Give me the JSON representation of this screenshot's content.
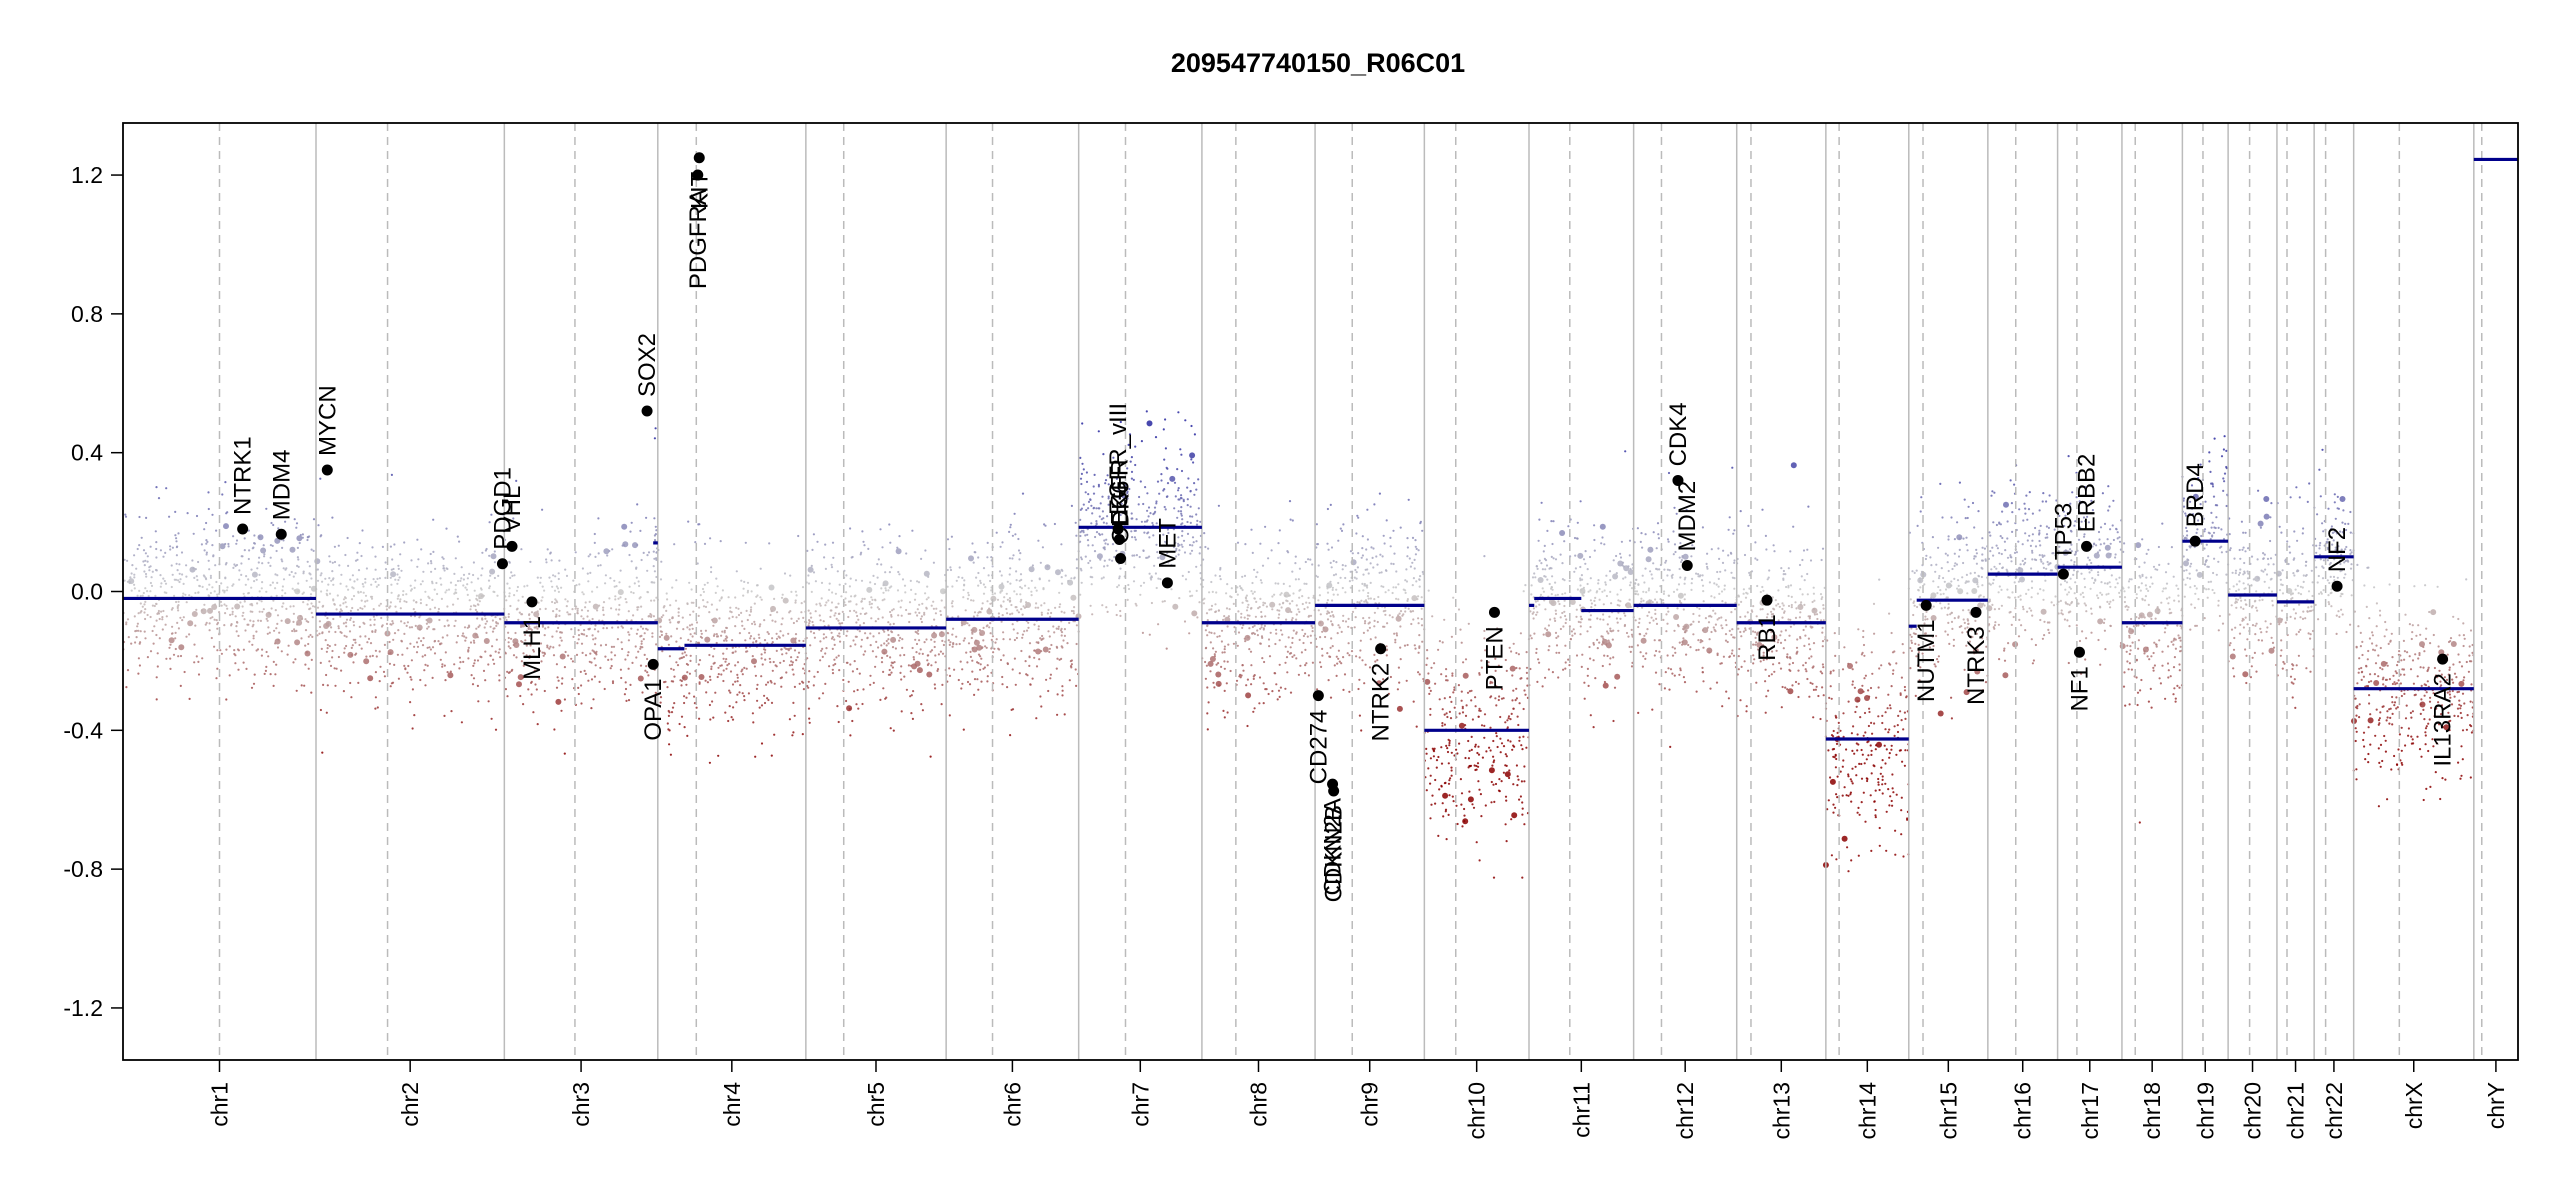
{
  "chart_data": {
    "type": "scatter",
    "title": "209547740150_R06C01",
    "ylim": [
      -1.35,
      1.35
    ],
    "y_ticks": [
      -1.2,
      -0.8,
      -0.4,
      0.0,
      0.4,
      0.8,
      1.2
    ],
    "y_tick_labels": [
      "-1.2",
      "-0.8",
      "-0.4",
      "0.0",
      "0.4",
      "0.8",
      "1.2"
    ],
    "grid": false,
    "chromosomes": [
      {
        "name": "chr1",
        "size": 249,
        "centromere": 0.5
      },
      {
        "name": "chr2",
        "size": 243,
        "centromere": 0.38
      },
      {
        "name": "chr3",
        "size": 198,
        "centromere": 0.46
      },
      {
        "name": "chr4",
        "size": 191,
        "centromere": 0.26
      },
      {
        "name": "chr5",
        "size": 181,
        "centromere": 0.27
      },
      {
        "name": "chr6",
        "size": 171,
        "centromere": 0.35
      },
      {
        "name": "chr7",
        "size": 159,
        "centromere": 0.38
      },
      {
        "name": "chr8",
        "size": 146,
        "centromere": 0.3
      },
      {
        "name": "chr9",
        "size": 141,
        "centromere": 0.34
      },
      {
        "name": "chr10",
        "size": 135,
        "centromere": 0.3
      },
      {
        "name": "chr11",
        "size": 135,
        "centromere": 0.39
      },
      {
        "name": "chr12",
        "size": 133,
        "centromere": 0.27
      },
      {
        "name": "chr13",
        "size": 115,
        "centromere": 0.16
      },
      {
        "name": "chr14",
        "size": 107,
        "centromere": 0.16
      },
      {
        "name": "chr15",
        "size": 102,
        "centromere": 0.18
      },
      {
        "name": "chr16",
        "size": 90,
        "centromere": 0.4
      },
      {
        "name": "chr17",
        "size": 83,
        "centromere": 0.3
      },
      {
        "name": "chr18",
        "size": 78,
        "centromere": 0.22
      },
      {
        "name": "chr19",
        "size": 59,
        "centromere": 0.45
      },
      {
        "name": "chr20",
        "size": 63,
        "centromere": 0.44
      },
      {
        "name": "chr21",
        "size": 48,
        "centromere": 0.27
      },
      {
        "name": "chr22",
        "size": 51,
        "centromere": 0.29
      },
      {
        "name": "chrX",
        "size": 155,
        "centromere": 0.38
      },
      {
        "name": "chrY",
        "size": 57,
        "centromere": 0.18
      }
    ],
    "segments": [
      {
        "chr": "chr1",
        "start": 0.0,
        "end": 1.0,
        "value": -0.02
      },
      {
        "chr": "chr2",
        "start": 0.0,
        "end": 1.0,
        "value": -0.065
      },
      {
        "chr": "chr3",
        "start": 0.0,
        "end": 1.0,
        "value": -0.09
      },
      {
        "chr": "chr3",
        "start": 0.97,
        "end": 1.0,
        "value": 0.14
      },
      {
        "chr": "chr4",
        "start": 0.0,
        "end": 0.18,
        "value": -0.165
      },
      {
        "chr": "chr4",
        "start": 0.18,
        "end": 1.0,
        "value": -0.155
      },
      {
        "chr": "chr5",
        "start": 0.0,
        "end": 1.0,
        "value": -0.105
      },
      {
        "chr": "chr6",
        "start": 0.0,
        "end": 1.0,
        "value": -0.08
      },
      {
        "chr": "chr7",
        "start": 0.0,
        "end": 1.0,
        "value": 0.185
      },
      {
        "chr": "chr8",
        "start": 0.0,
        "end": 1.0,
        "value": -0.09
      },
      {
        "chr": "chr9",
        "start": 0.0,
        "end": 1.0,
        "value": -0.04
      },
      {
        "chr": "chr10",
        "start": 0.0,
        "end": 1.0,
        "value": -0.4
      },
      {
        "chr": "chr11",
        "start": 0.0,
        "end": 0.05,
        "value": -0.04
      },
      {
        "chr": "chr11",
        "start": 0.05,
        "end": 0.5,
        "value": -0.02
      },
      {
        "chr": "chr11",
        "start": 0.5,
        "end": 1.0,
        "value": -0.055
      },
      {
        "chr": "chr12",
        "start": 0.0,
        "end": 1.0,
        "value": -0.04
      },
      {
        "chr": "chr13",
        "start": 0.0,
        "end": 1.0,
        "value": -0.09
      },
      {
        "chr": "chr14",
        "start": 0.0,
        "end": 1.0,
        "value": -0.425
      },
      {
        "chr": "chr15",
        "start": 0.0,
        "end": 0.1,
        "value": -0.1
      },
      {
        "chr": "chr15",
        "start": 0.1,
        "end": 1.0,
        "value": -0.025
      },
      {
        "chr": "chr16",
        "start": 0.0,
        "end": 1.0,
        "value": 0.05
      },
      {
        "chr": "chr17",
        "start": 0.0,
        "end": 1.0,
        "value": 0.07
      },
      {
        "chr": "chr18",
        "start": 0.0,
        "end": 1.0,
        "value": -0.09
      },
      {
        "chr": "chr19",
        "start": 0.0,
        "end": 1.0,
        "value": 0.145
      },
      {
        "chr": "chr20",
        "start": 0.0,
        "end": 1.0,
        "value": -0.01
      },
      {
        "chr": "chr21",
        "start": 0.0,
        "end": 1.0,
        "value": -0.03
      },
      {
        "chr": "chr22",
        "start": 0.0,
        "end": 1.0,
        "value": 0.1
      },
      {
        "chr": "chrX",
        "start": 0.0,
        "end": 1.0,
        "value": -0.28
      },
      {
        "chr": "chrY",
        "start": 0.0,
        "end": 1.0,
        "value": 1.245
      }
    ],
    "genes": [
      {
        "label": "NTRK1",
        "chr": "chr1",
        "pos": 0.62,
        "value": 0.18,
        "label_side": "above"
      },
      {
        "label": "MDM4",
        "chr": "chr1",
        "pos": 0.82,
        "value": 0.165,
        "label_side": "above"
      },
      {
        "label": "MYCN",
        "chr": "chr2",
        "pos": 0.06,
        "value": 0.35,
        "label_side": "above"
      },
      {
        "label": "PDGD1",
        "chr": "chr2",
        "pos": 0.99,
        "value": 0.08,
        "label_side": "above"
      },
      {
        "label": "VHL",
        "chr": "chr3",
        "pos": 0.05,
        "value": 0.13,
        "label_side": "above"
      },
      {
        "label": "MLH1",
        "chr": "chr3",
        "pos": 0.18,
        "value": -0.03,
        "label_side": "below"
      },
      {
        "label": "SOX2",
        "chr": "chr3",
        "pos": 0.93,
        "value": 0.52,
        "label_side": "above"
      },
      {
        "label": "OPA1",
        "chr": "chr3",
        "pos": 0.97,
        "value": -0.21,
        "label_side": "below"
      },
      {
        "label": "PDGFRA",
        "chr": "chr4",
        "pos": 0.27,
        "value": 1.2,
        "label_side": "below"
      },
      {
        "label": "KIT",
        "chr": "chr4",
        "pos": 0.28,
        "value": 1.25,
        "label_side": "below"
      },
      {
        "label": "EGFR_vIII",
        "chr": "chr7",
        "pos": 0.32,
        "value": 0.18,
        "label_side": "above"
      },
      {
        "label": "EGFR",
        "chr": "chr7",
        "pos": 0.33,
        "value": 0.15,
        "label_side": "above"
      },
      {
        "label": "CDK6",
        "chr": "chr7",
        "pos": 0.34,
        "value": 0.095,
        "label_side": "above"
      },
      {
        "label": "MET",
        "chr": "chr7",
        "pos": 0.72,
        "value": 0.025,
        "label_side": "above"
      },
      {
        "label": "CD274",
        "chr": "chr9",
        "pos": 0.03,
        "value": -0.3,
        "label_side": "below"
      },
      {
        "label": "CDKN2A",
        "chr": "chr9",
        "pos": 0.16,
        "value": -0.555,
        "label_side": "below"
      },
      {
        "label": "CDKN2B",
        "chr": "chr9",
        "pos": 0.17,
        "value": -0.575,
        "label_side": "below"
      },
      {
        "label": "NTRK2",
        "chr": "chr9",
        "pos": 0.6,
        "value": -0.165,
        "label_side": "below"
      },
      {
        "label": "PTEN",
        "chr": "chr10",
        "pos": 0.67,
        "value": -0.06,
        "label_side": "below"
      },
      {
        "label": "MDM2",
        "chr": "chr12",
        "pos": 0.52,
        "value": 0.075,
        "label_side": "above"
      },
      {
        "label": "CDK4",
        "chr": "chr12",
        "pos": 0.43,
        "value": 0.32,
        "label_side": "above"
      },
      {
        "label": "RB1",
        "chr": "chr13",
        "pos": 0.34,
        "value": -0.025,
        "label_side": "below"
      },
      {
        "label": "NUTM1",
        "chr": "chr15",
        "pos": 0.22,
        "value": -0.04,
        "label_side": "below"
      },
      {
        "label": "NTRK3",
        "chr": "chr15",
        "pos": 0.85,
        "value": -0.06,
        "label_side": "below"
      },
      {
        "label": "TP53",
        "chr": "chr17",
        "pos": 0.09,
        "value": 0.05,
        "label_side": "above"
      },
      {
        "label": "NF1",
        "chr": "chr17",
        "pos": 0.34,
        "value": -0.175,
        "label_side": "below"
      },
      {
        "label": "ERBB2",
        "chr": "chr17",
        "pos": 0.45,
        "value": 0.13,
        "label_side": "above"
      },
      {
        "label": "BRD4",
        "chr": "chr19",
        "pos": 0.28,
        "value": 0.145,
        "label_side": "above"
      },
      {
        "label": "NF2",
        "chr": "chr22",
        "pos": 0.58,
        "value": 0.015,
        "label_side": "above"
      },
      {
        "label": "IL13RA2",
        "chr": "chrX",
        "pos": 0.74,
        "value": -0.195,
        "label_side": "below"
      }
    ],
    "colors": {
      "segment": "#00008b",
      "high": "#2a2aa0",
      "low": "#8b0000",
      "neutral": "#c8c8c8",
      "chrom_boundary": "#bbbbbb",
      "centromere": "#bbbbbb",
      "point": "#000000"
    }
  }
}
